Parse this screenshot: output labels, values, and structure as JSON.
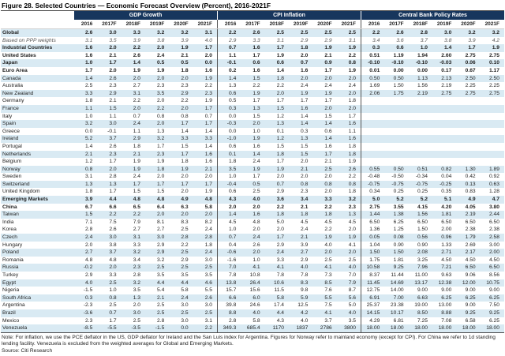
{
  "title": "Figure 28. Selected Countries — Economic Forecast Overview (Percent), 2016-2021F",
  "groups": [
    {
      "label": "GDP Growth"
    },
    {
      "label": "CPI Inflation"
    },
    {
      "label": "Central Bank Policy Rates"
    }
  ],
  "years": [
    "2016",
    "2017F",
    "2018F",
    "2019F",
    "2020F",
    "2021F"
  ],
  "colors": {
    "header_bg": "#17365D",
    "header_text": "#FFFFFF",
    "stripe": "#D9EAF3"
  },
  "rows": [
    {
      "name": "Global",
      "bold": true,
      "italic": false,
      "shaded": true,
      "gdp": [
        "2.6",
        "3.0",
        "3.3",
        "3.2",
        "3.2",
        "3.1"
      ],
      "cpi": [
        "2.2",
        "2.6",
        "2.5",
        "2.5",
        "2.5",
        "2.5"
      ],
      "cb": [
        "2.2",
        "2.6",
        "2.8",
        "3.0",
        "3.2",
        "3.2"
      ]
    },
    {
      "name": "Based on PPP weights",
      "bold": false,
      "italic": true,
      "shaded": false,
      "gdp": [
        "3.1",
        "3.5",
        "3.9",
        "3.8",
        "3.9",
        "4.0"
      ],
      "cpi": [
        "2.9",
        "3.3",
        "3.1",
        "2.9",
        "2.9",
        "3.1"
      ],
      "cb": [
        "3.4",
        "3.6",
        "3.7",
        "3.8",
        "3.9",
        "4.2"
      ]
    },
    {
      "name": "Industrial Countries",
      "bold": true,
      "italic": false,
      "shaded": true,
      "gdp": [
        "1.6",
        "2.0",
        "2.2",
        "2.0",
        "1.9",
        "1.7"
      ],
      "cpi": [
        "0.7",
        "1.6",
        "1.7",
        "1.8",
        "1.9",
        "1.9"
      ],
      "cb": [
        "0.3",
        "0.6",
        "1.0",
        "1.4",
        "1.7",
        "1.9"
      ]
    },
    {
      "name": "United States",
      "bold": true,
      "italic": false,
      "shaded": false,
      "gdp": [
        "1.6",
        "2.1",
        "2.6",
        "2.4",
        "2.1",
        "2.0"
      ],
      "cpi": [
        "1.1",
        "1.7",
        "1.9",
        "2.0",
        "2.1",
        "2.2"
      ],
      "cb": [
        "0.51",
        "1.19",
        "1.94",
        "2.60",
        "2.75",
        "2.75"
      ]
    },
    {
      "name": "Japan",
      "bold": true,
      "italic": false,
      "shaded": true,
      "gdp": [
        "1.0",
        "1.7",
        "1.4",
        "0.5",
        "0.5",
        "0.0"
      ],
      "cpi": [
        "-0.1",
        "0.6",
        "0.6",
        "0.7",
        "0.9",
        "0.8"
      ],
      "cb": [
        "-0.10",
        "-0.10",
        "-0.10",
        "-0.03",
        "0.06",
        "0.10"
      ]
    },
    {
      "name": "Euro Area",
      "bold": true,
      "italic": false,
      "shaded": false,
      "gdp": [
        "1.7",
        "2.0",
        "1.9",
        "1.9",
        "1.8",
        "1.6"
      ],
      "cpi": [
        "0.2",
        "1.6",
        "1.4",
        "1.6",
        "1.7",
        "1.9"
      ],
      "cb": [
        "0.01",
        "0.00",
        "0.00",
        "0.17",
        "0.67",
        "1.17"
      ]
    },
    {
      "name": "Canada",
      "bold": false,
      "italic": false,
      "shaded": true,
      "gdp": [
        "1.4",
        "2.6",
        "2.0",
        "2.0",
        "2.0",
        "1.9"
      ],
      "cpi": [
        "1.4",
        "1.5",
        "1.8",
        "2.0",
        "2.0",
        "2.0"
      ],
      "cb": [
        "0.50",
        "0.50",
        "1.13",
        "2.13",
        "2.50",
        "2.50"
      ]
    },
    {
      "name": "Australia",
      "bold": false,
      "italic": false,
      "shaded": false,
      "gdp": [
        "2.5",
        "2.3",
        "2.7",
        "2.3",
        "2.3",
        "2.2"
      ],
      "cpi": [
        "1.3",
        "2.2",
        "2.2",
        "2.4",
        "2.4",
        "2.4"
      ],
      "cb": [
        "1.69",
        "1.50",
        "1.56",
        "2.19",
        "2.25",
        "2.25"
      ]
    },
    {
      "name": "New Zealand",
      "bold": false,
      "italic": false,
      "shaded": true,
      "gdp": [
        "3.3",
        "2.9",
        "3.1",
        "3.5",
        "2.9",
        "2.3"
      ],
      "cpi": [
        "0.6",
        "1.9",
        "2.0",
        "1.9",
        "1.9",
        "2.0"
      ],
      "cb": [
        "2.06",
        "1.75",
        "2.19",
        "2.75",
        "2.75",
        "2.75"
      ]
    },
    {
      "name": "Germany",
      "bold": false,
      "italic": false,
      "shaded": false,
      "gdp": [
        "1.8",
        "2.1",
        "2.2",
        "2.0",
        "2.2",
        "1.9"
      ],
      "cpi": [
        "0.5",
        "1.7",
        "1.7",
        "1.7",
        "1.7",
        "1.8"
      ],
      "cb": []
    },
    {
      "name": "France",
      "bold": false,
      "italic": false,
      "shaded": true,
      "gdp": [
        "1.1",
        "1.5",
        "2.0",
        "2.2",
        "2.0",
        "1.7"
      ],
      "cpi": [
        "0.3",
        "1.3",
        "1.5",
        "1.6",
        "2.0",
        "2.0"
      ],
      "cb": []
    },
    {
      "name": "Italy",
      "bold": false,
      "italic": false,
      "shaded": false,
      "gdp": [
        "1.0",
        "1.1",
        "0.7",
        "0.8",
        "0.8",
        "0.7"
      ],
      "cpi": [
        "0.0",
        "1.5",
        "1.2",
        "1.4",
        "1.5",
        "1.7"
      ],
      "cb": []
    },
    {
      "name": "Spain",
      "bold": false,
      "italic": false,
      "shaded": true,
      "gdp": [
        "3.2",
        "3.0",
        "2.4",
        "2.0",
        "1.7",
        "1.7"
      ],
      "cpi": [
        "-0.3",
        "2.0",
        "1.3",
        "1.4",
        "1.4",
        "1.6"
      ],
      "cb": []
    },
    {
      "name": "Greece",
      "bold": false,
      "italic": false,
      "shaded": false,
      "gdp": [
        "0.0",
        "-0.1",
        "1.1",
        "1.3",
        "1.4",
        "1.4"
      ],
      "cpi": [
        "0.0",
        "1.0",
        "0.1",
        "0.3",
        "0.6",
        "1.1"
      ],
      "cb": []
    },
    {
      "name": "Ireland",
      "bold": false,
      "italic": false,
      "shaded": true,
      "gdp": [
        "5.2",
        "3.7",
        "2.9",
        "3.2",
        "3.3",
        "3.3"
      ],
      "cpi": [
        "-1.0",
        "1.9",
        "1.2",
        "1.3",
        "1.4",
        "1.6"
      ],
      "cb": []
    },
    {
      "name": "Portugal",
      "bold": false,
      "italic": false,
      "shaded": false,
      "gdp": [
        "1.4",
        "2.6",
        "1.8",
        "1.7",
        "1.5",
        "1.4"
      ],
      "cpi": [
        "0.6",
        "1.6",
        "1.5",
        "1.5",
        "1.6",
        "1.8"
      ],
      "cb": []
    },
    {
      "name": "Netherlands",
      "bold": false,
      "italic": false,
      "shaded": true,
      "gdp": [
        "2.1",
        "2.3",
        "2.1",
        "2.3",
        "1.7",
        "1.6"
      ],
      "cpi": [
        "0.1",
        "1.4",
        "1.8",
        "1.5",
        "1.7",
        "1.8"
      ],
      "cb": []
    },
    {
      "name": "Belgium",
      "bold": false,
      "italic": false,
      "shaded": false,
      "gdp": [
        "1.2",
        "1.7",
        "1.9",
        "1.9",
        "1.8",
        "1.6"
      ],
      "cpi": [
        "1.8",
        "2.4",
        "1.7",
        "2.0",
        "2.1",
        "1.9"
      ],
      "cb": []
    },
    {
      "name": "Norway",
      "bold": false,
      "italic": false,
      "shaded": true,
      "gdp": [
        "0.8",
        "2.0",
        "1.9",
        "1.8",
        "1.9",
        "2.1"
      ],
      "cpi": [
        "3.5",
        "1.9",
        "1.9",
        "2.1",
        "2.5",
        "2.6"
      ],
      "cb": [
        "0.55",
        "0.50",
        "0.51",
        "0.82",
        "1.30",
        "1.89"
      ]
    },
    {
      "name": "Sweden",
      "bold": false,
      "italic": false,
      "shaded": false,
      "gdp": [
        "3.1",
        "2.8",
        "2.4",
        "2.0",
        "2.0",
        "2.0"
      ],
      "cpi": [
        "1.0",
        "1.7",
        "2.0",
        "2.0",
        "2.0",
        "2.2"
      ],
      "cb": [
        "-0.48",
        "-0.50",
        "-0.34",
        "0.04",
        "0.42",
        "0.92"
      ]
    },
    {
      "name": "Switzerland",
      "bold": false,
      "italic": false,
      "shaded": true,
      "gdp": [
        "1.3",
        "1.3",
        "1.7",
        "1.7",
        "1.7",
        "1.7"
      ],
      "cpi": [
        "-0.4",
        "0.5",
        "0.7",
        "0.8",
        "0.8",
        "0.8"
      ],
      "cb": [
        "-0.75",
        "-0.75",
        "-0.75",
        "-0.25",
        "0.13",
        "0.63"
      ]
    },
    {
      "name": "United Kingdom",
      "bold": false,
      "italic": false,
      "shaded": false,
      "gdp": [
        "1.8",
        "1.7",
        "1.5",
        "1.5",
        "2.0",
        "1.9"
      ],
      "cpi": [
        "0.6",
        "2.5",
        "2.9",
        "2.3",
        "2.0",
        "1.8"
      ],
      "cb": [
        "0.34",
        "0.25",
        "0.25",
        "0.35",
        "0.83",
        "1.28"
      ]
    },
    {
      "name": "Emerging Markets",
      "bold": true,
      "italic": false,
      "shaded": true,
      "gdp": [
        "3.9",
        "4.4",
        "4.8",
        "4.8",
        "4.9",
        "4.8"
      ],
      "cpi": [
        "4.3",
        "4.0",
        "3.6",
        "3.4",
        "3.3",
        "3.2"
      ],
      "cb": [
        "5.0",
        "5.2",
        "5.2",
        "5.1",
        "4.9",
        "4.7"
      ]
    },
    {
      "name": "China",
      "bold": true,
      "italic": false,
      "shaded": false,
      "gdp": [
        "6.7",
        "6.6",
        "6.5",
        "6.4",
        "6.3",
        "5.8"
      ],
      "cpi": [
        "2.0",
        "2.0",
        "2.2",
        "2.1",
        "2.2",
        "2.3"
      ],
      "cb": [
        "2.75",
        "3.55",
        "4.15",
        "4.20",
        "4.05",
        "3.80"
      ]
    },
    {
      "name": "Taiwan",
      "bold": false,
      "italic": false,
      "shaded": true,
      "gdp": [
        "1.5",
        "2.2",
        "2.2",
        "2.0",
        "2.0",
        "2.0"
      ],
      "cpi": [
        "1.4",
        "1.6",
        "1.8",
        "1.8",
        "1.8",
        "1.3"
      ],
      "cb": [
        "1.44",
        "1.38",
        "1.56",
        "1.81",
        "2.19",
        "2.44"
      ]
    },
    {
      "name": "India",
      "bold": false,
      "italic": false,
      "shaded": false,
      "gdp": [
        "7.1",
        "7.5",
        "7.9",
        "8.1",
        "8.3",
        "8.2"
      ],
      "cpi": [
        "4.5",
        "4.8",
        "5.0",
        "4.5",
        "4.5",
        "4.5"
      ],
      "cb": [
        "6.50",
        "6.25",
        "6.50",
        "6.50",
        "6.50",
        "6.50"
      ]
    },
    {
      "name": "Korea",
      "bold": false,
      "italic": false,
      "shaded": false,
      "gdp": [
        "2.8",
        "2.6",
        "2.7",
        "2.7",
        "2.5",
        "2.4"
      ],
      "cpi": [
        "1.0",
        "2.0",
        "2.0",
        "2.4",
        "2.2",
        "2.0"
      ],
      "cb": [
        "1.36",
        "1.25",
        "1.50",
        "2.00",
        "2.38",
        "2.38"
      ]
    },
    {
      "name": "Czech",
      "bold": false,
      "italic": false,
      "shaded": true,
      "gdp": [
        "2.4",
        "3.0",
        "3.1",
        "3.0",
        "2.8",
        "2.8"
      ],
      "cpi": [
        "0.7",
        "2.4",
        "1.7",
        "2.1",
        "1.9",
        "1.9"
      ],
      "cb": [
        "0.05",
        "0.08",
        "0.56",
        "0.96",
        "1.79",
        "2.58"
      ]
    },
    {
      "name": "Hungary",
      "bold": false,
      "italic": false,
      "shaded": false,
      "gdp": [
        "2.0",
        "3.8",
        "3.3",
        "2.9",
        "2.2",
        "1.8"
      ],
      "cpi": [
        "0.4",
        "2.6",
        "2.9",
        "3.9",
        "4.0",
        "4.1"
      ],
      "cb": [
        "1.04",
        "0.90",
        "0.90",
        "1.33",
        "2.69",
        "3.00"
      ]
    },
    {
      "name": "Poland",
      "bold": false,
      "italic": false,
      "shaded": true,
      "gdp": [
        "2.7",
        "3.7",
        "3.2",
        "2.9",
        "2.5",
        "2.4"
      ],
      "cpi": [
        "-0.6",
        "2.0",
        "2.4",
        "2.7",
        "2.0",
        "2.0"
      ],
      "cb": [
        "1.50",
        "1.50",
        "2.08",
        "2.71",
        "2.17",
        "2.00"
      ]
    },
    {
      "name": "Romania",
      "bold": false,
      "italic": false,
      "shaded": false,
      "gdp": [
        "4.8",
        "4.8",
        "3.4",
        "3.2",
        "2.9",
        "3.0"
      ],
      "cpi": [
        "-1.6",
        "1.0",
        "3.3",
        "2.9",
        "2.5",
        "2.5"
      ],
      "cb": [
        "1.75",
        "1.81",
        "3.25",
        "4.50",
        "4.50",
        "4.50"
      ]
    },
    {
      "name": "Russia",
      "bold": false,
      "italic": false,
      "shaded": true,
      "gdp": [
        "-0.2",
        "2.0",
        "2.3",
        "2.5",
        "2.5",
        "2.5"
      ],
      "cpi": [
        "7.0",
        "4.1",
        "4.1",
        "4.0",
        "4.1",
        "4.0"
      ],
      "cb": [
        "10.58",
        "9.25",
        "7.96",
        "7.21",
        "6.50",
        "6.50"
      ]
    },
    {
      "name": "Turkey",
      "bold": false,
      "italic": false,
      "shaded": false,
      "gdp": [
        "2.9",
        "3.3",
        "2.8",
        "3.5",
        "3.5",
        "3.5"
      ],
      "cpi": [
        "7.8",
        "10.8",
        "7.8",
        "7.8",
        "7.3",
        "7.0"
      ],
      "cb": [
        "8.37",
        "11.44",
        "11.00",
        "9.63",
        "9.06",
        "8.56"
      ]
    },
    {
      "name": "Egypt",
      "bold": false,
      "italic": false,
      "shaded": true,
      "gdp": [
        "4.0",
        "2.5",
        "3.2",
        "4.4",
        "4.4",
        "4.6"
      ],
      "cpi": [
        "13.8",
        "26.4",
        "10.6",
        "8.3",
        "8.5",
        "7.9"
      ],
      "cb": [
        "11.45",
        "14.69",
        "13.17",
        "12.38",
        "12.00",
        "10.75"
      ]
    },
    {
      "name": "Nigeria",
      "bold": false,
      "italic": false,
      "shaded": false,
      "gdp": [
        "-1.5",
        "1.0",
        "3.5",
        "5.4",
        "5.8",
        "5.5"
      ],
      "cpi": [
        "15.7",
        "15.6",
        "11.5",
        "9.8",
        "7.6",
        "8.7"
      ],
      "cb": [
        "12.75",
        "14.00",
        "9.00",
        "9.00",
        "9.00",
        "9.00"
      ]
    },
    {
      "name": "South Africa",
      "bold": false,
      "italic": false,
      "shaded": true,
      "gdp": [
        "0.3",
        "0.8",
        "1.3",
        "2.1",
        "2.4",
        "2.6"
      ],
      "cpi": [
        "6.6",
        "6.0",
        "5.8",
        "5.9",
        "5.5",
        "5.6"
      ],
      "cb": [
        "6.91",
        "7.00",
        "6.63",
        "6.25",
        "6.25",
        "6.25"
      ]
    },
    {
      "name": "Argentina",
      "bold": false,
      "italic": false,
      "shaded": false,
      "gdp": [
        "-2.3",
        "2.5",
        "2.0",
        "2.5",
        "3.0",
        "3.0"
      ],
      "cpi": [
        "39.8",
        "24.6",
        "17.4",
        "12.5",
        "7.5",
        "5.0"
      ],
      "cb": [
        "25.37",
        "23.38",
        "19.00",
        "13.00",
        "9.00",
        "7.50"
      ]
    },
    {
      "name": "Brazil",
      "bold": false,
      "italic": false,
      "shaded": true,
      "gdp": [
        "-3.6",
        "0.7",
        "3.0",
        "2.5",
        "2.5",
        "2.5"
      ],
      "cpi": [
        "8.8",
        "4.0",
        "4.4",
        "4.2",
        "4.1",
        "4.0"
      ],
      "cb": [
        "14.15",
        "10.17",
        "8.50",
        "8.88",
        "9.25",
        "9.25"
      ]
    },
    {
      "name": "Mexico",
      "bold": false,
      "italic": false,
      "shaded": false,
      "gdp": [
        "2.3",
        "1.7",
        "2.5",
        "2.8",
        "3.0",
        "3.1"
      ],
      "cpi": [
        "2.8",
        "5.8",
        "4.3",
        "4.0",
        "3.7",
        "3.5"
      ],
      "cb": [
        "4.29",
        "6.81",
        "7.25",
        "7.08",
        "6.58",
        "6.25"
      ]
    },
    {
      "name": "Venezuela",
      "bold": false,
      "italic": false,
      "shaded": true,
      "gdp": [
        "-8.5",
        "-5.5",
        "-3.5",
        "-1.5",
        "0.0",
        "2.2"
      ],
      "cpi": [
        "349.3",
        "685.4",
        "1170",
        "1837",
        "2786",
        "3800"
      ],
      "cb": [
        "18.00",
        "18.00",
        "18.00",
        "18.00",
        "18.00",
        "18.00"
      ]
    }
  ],
  "note": "Note: For inflation, we use the PCE deflator in the US, GDP deflator for Ireland and the San Luis index for Argentina. Figures for Norway refer to mainland economy (except for CPI). For China we refer to 1d standing lending facility. Venezuela is excluded from the weighted averages for Global and Emerging Markets.",
  "source": "Source: Citi Research"
}
